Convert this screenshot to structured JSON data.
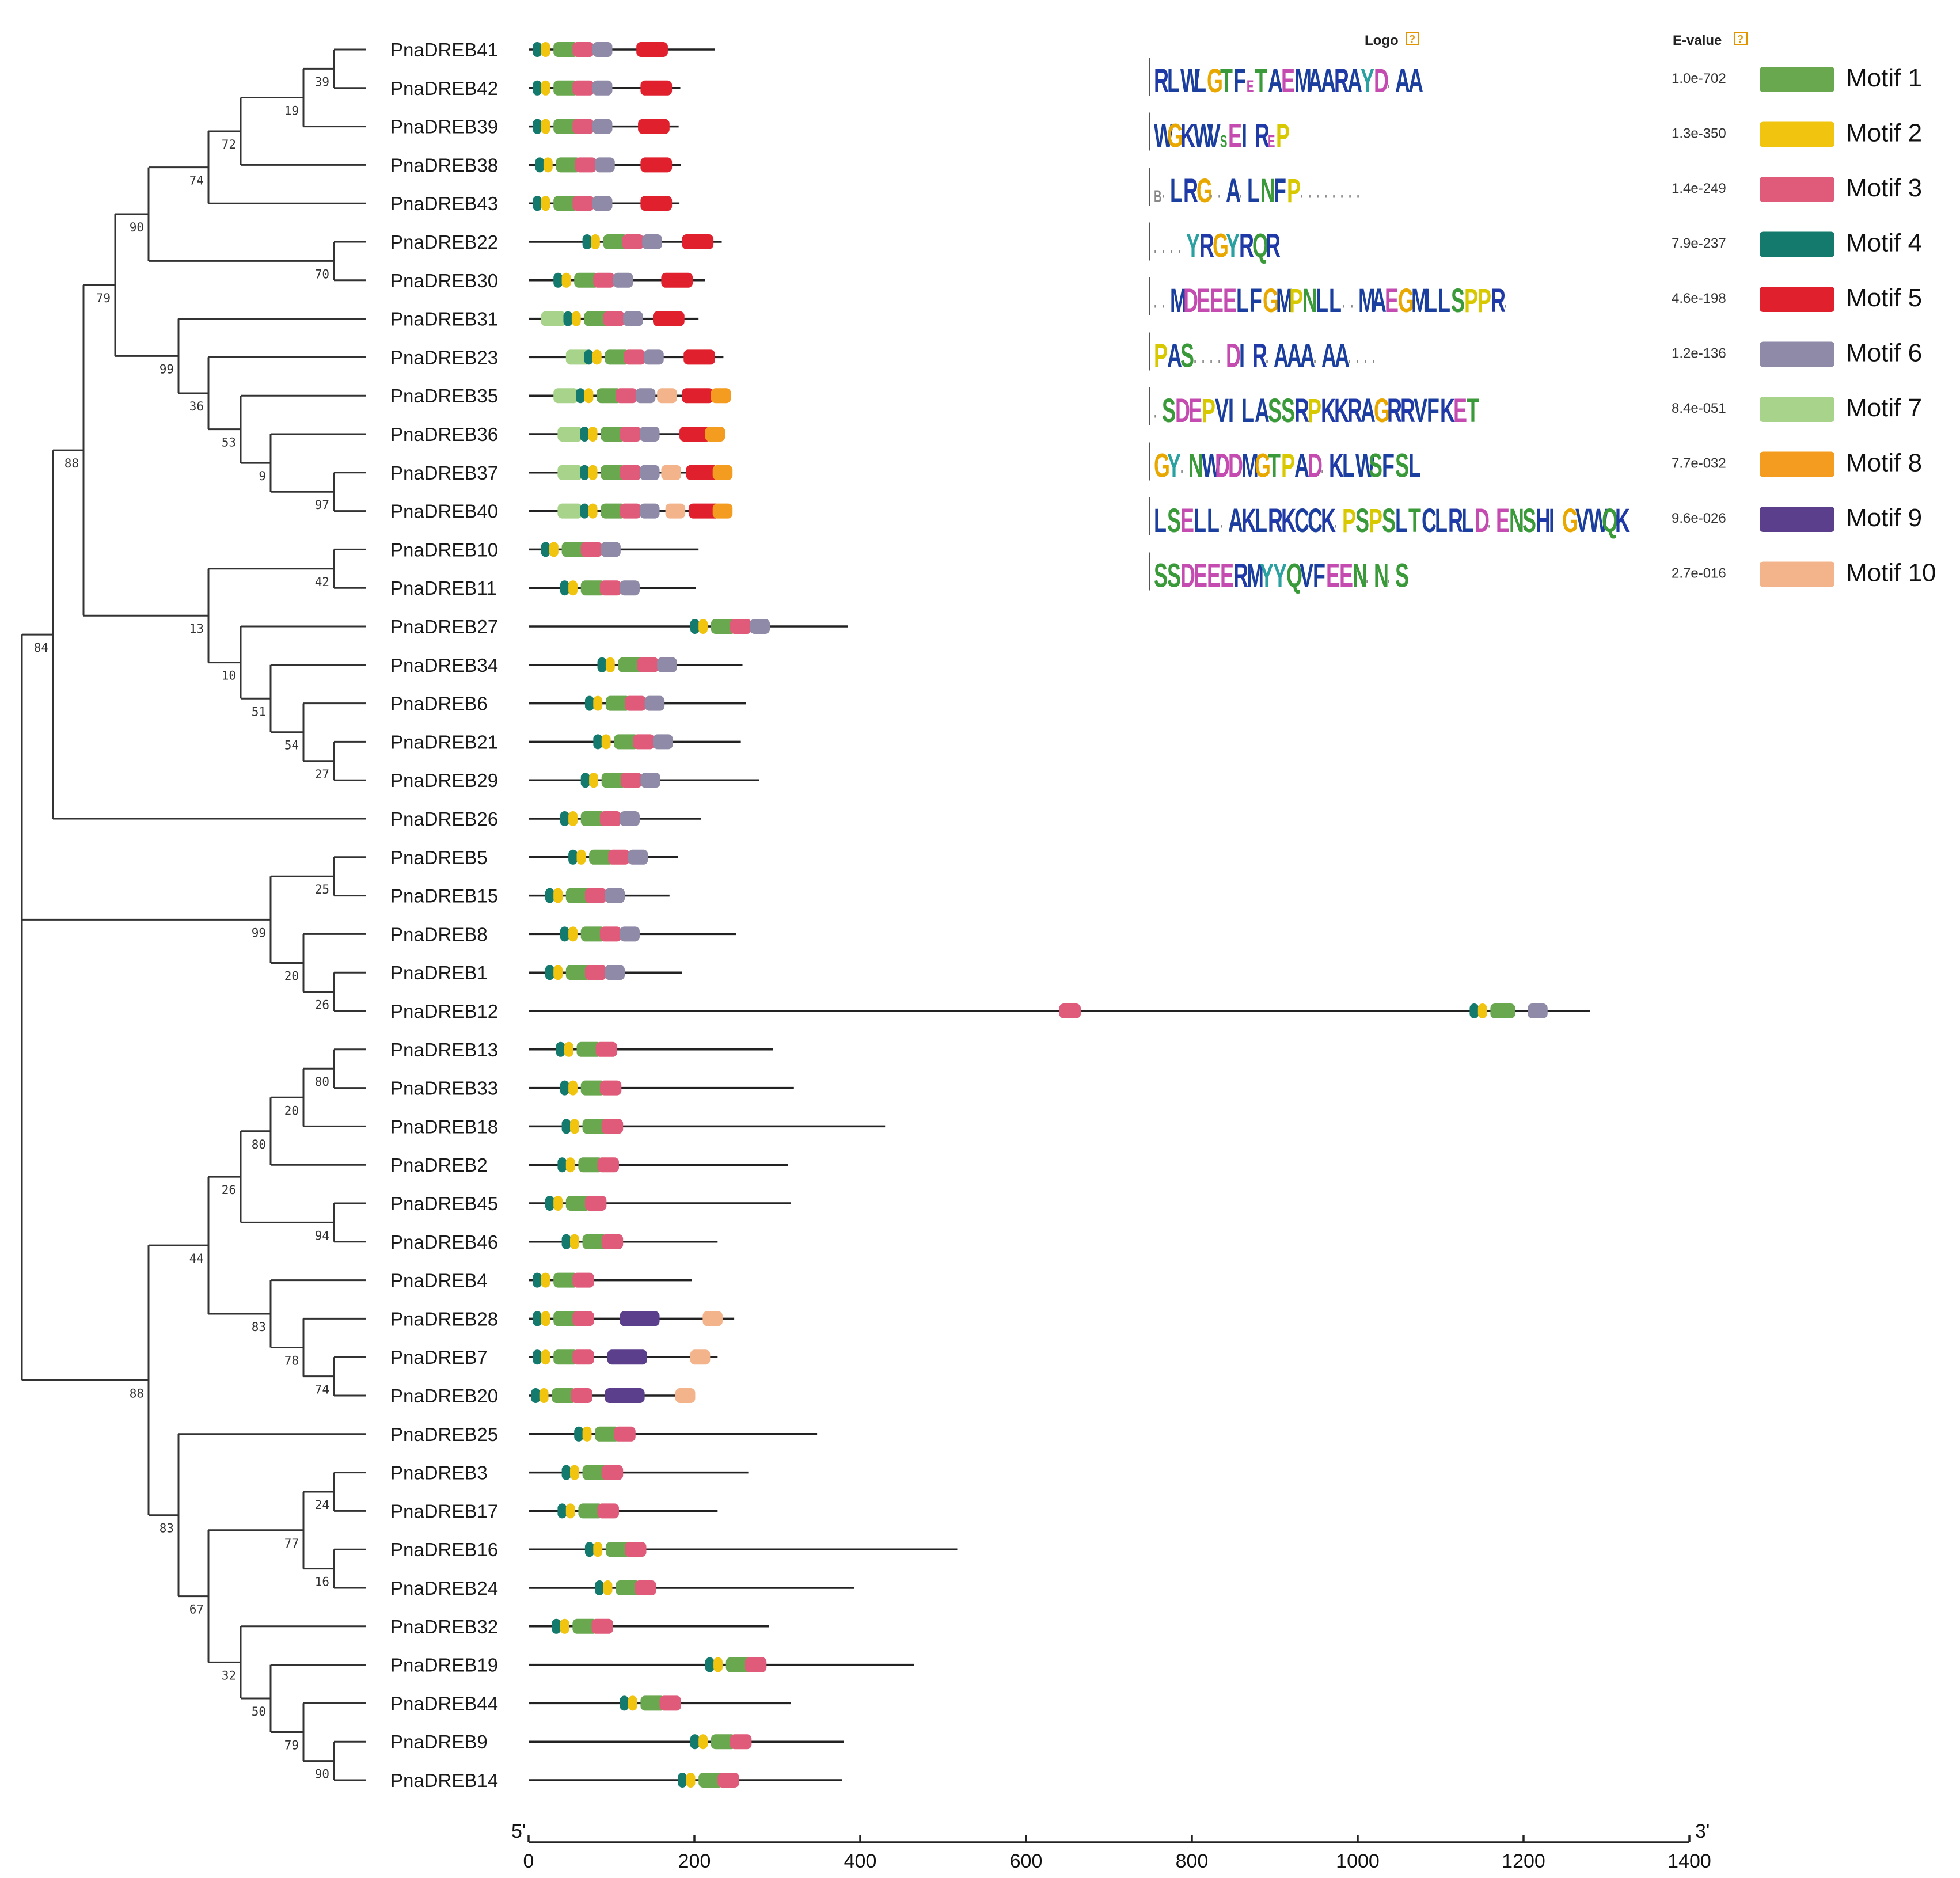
{
  "header": {
    "logo": "Logo",
    "evalue": "E-value"
  },
  "axis": {
    "start_label": "5'",
    "end_label": "3'",
    "ticks": [
      0,
      200,
      400,
      600,
      800,
      1000,
      1200,
      1400
    ],
    "max": 1400
  },
  "colors": {
    "motif1": "#6aa84f",
    "motif2": "#f1c40f",
    "motif3": "#e05a7a",
    "motif4": "#157a6e",
    "motif5": "#e0202c",
    "motif6": "#8e8aa8",
    "motif7": "#a8d38a",
    "motif8": "#f39c1f",
    "motif9": "#5b3f8c",
    "motif10": "#f3b48c"
  },
  "motif_legend": [
    {
      "label": "Motif 1",
      "evalue": "1.0e-702",
      "color_key": "motif1",
      "logo": "RLWLGTFeTAEMAARAYDxAA"
    },
    {
      "label": "Motif 2",
      "evalue": "1.3e-350",
      "color_key": "motif2",
      "logo": "WGKWVsEIReP"
    },
    {
      "label": "Motif 3",
      "evalue": "1.4e-249",
      "color_key": "motif3",
      "logo": "bxLRGxxAxLNFPxxxxxxxx"
    },
    {
      "label": "Motif 4",
      "evalue": "7.9e-237",
      "color_key": "motif4",
      "logo": "xxxxYRGYRQR"
    },
    {
      "label": "Motif 5",
      "evalue": "4.6e-198",
      "color_key": "motif5",
      "logo": "xxMDEEELFGMPNLLxxMAEGMLLSPPRx"
    },
    {
      "label": "Motif 6",
      "evalue": "1.2e-136",
      "color_key": "motif6",
      "logo": "PASxxxxDIRxAAAxAAxxxx"
    },
    {
      "label": "Motif 7",
      "evalue": "8.4e-051",
      "color_key": "motif7",
      "logo": "xSDEPVILASSRPKKRAGRRVFKET"
    },
    {
      "label": "Motif 8",
      "evalue": "7.7e-032",
      "color_key": "motif8",
      "logo": "GYxNWDDMGTPADxKLWSFSL"
    },
    {
      "label": "Motif 9",
      "evalue": "9.6e-026",
      "color_key": "motif9",
      "logo": "LSELLxAKLRKCCKxPSPSLTCLRLDxENSHIGVWQK"
    },
    {
      "label": "Motif 10",
      "evalue": "2.7e-016",
      "color_key": "motif10",
      "logo": "SSDEEERMYYQVFEENxNxS"
    }
  ],
  "genes": [
    {
      "name": "PnaDREB41",
      "length": 225,
      "motifs": [
        [
          4,
          5
        ],
        [
          2,
          15
        ],
        [
          1,
          30
        ],
        [
          3,
          53
        ],
        [
          6,
          77
        ],
        [
          5,
          130
        ]
      ]
    },
    {
      "name": "PnaDREB42",
      "length": 183,
      "motifs": [
        [
          4,
          5
        ],
        [
          2,
          15
        ],
        [
          1,
          30
        ],
        [
          3,
          53
        ],
        [
          6,
          77
        ],
        [
          5,
          135
        ]
      ]
    },
    {
      "name": "PnaDREB39",
      "length": 181,
      "motifs": [
        [
          4,
          5
        ],
        [
          2,
          15
        ],
        [
          1,
          30
        ],
        [
          3,
          53
        ],
        [
          6,
          77
        ],
        [
          5,
          132
        ]
      ]
    },
    {
      "name": "PnaDREB38",
      "length": 184,
      "motifs": [
        [
          4,
          8
        ],
        [
          2,
          18
        ],
        [
          1,
          33
        ],
        [
          3,
          56
        ],
        [
          6,
          80
        ],
        [
          5,
          135
        ]
      ]
    },
    {
      "name": "PnaDREB43",
      "length": 182,
      "motifs": [
        [
          4,
          5
        ],
        [
          2,
          15
        ],
        [
          1,
          30
        ],
        [
          3,
          53
        ],
        [
          6,
          77
        ],
        [
          5,
          135
        ]
      ]
    },
    {
      "name": "PnaDREB22",
      "length": 233,
      "motifs": [
        [
          4,
          65
        ],
        [
          2,
          75
        ],
        [
          1,
          90
        ],
        [
          3,
          113
        ],
        [
          6,
          137
        ],
        [
          5,
          185
        ]
      ]
    },
    {
      "name": "PnaDREB30",
      "length": 213,
      "motifs": [
        [
          4,
          30
        ],
        [
          2,
          40
        ],
        [
          1,
          55
        ],
        [
          3,
          78
        ],
        [
          6,
          102
        ],
        [
          5,
          160
        ]
      ]
    },
    {
      "name": "PnaDREB31",
      "length": 205,
      "motifs": [
        [
          7,
          15
        ],
        [
          4,
          42
        ],
        [
          2,
          52
        ],
        [
          1,
          67
        ],
        [
          3,
          90
        ],
        [
          6,
          114
        ],
        [
          5,
          150
        ]
      ]
    },
    {
      "name": "PnaDREB23",
      "length": 235,
      "motifs": [
        [
          7,
          45
        ],
        [
          4,
          67
        ],
        [
          2,
          77
        ],
        [
          1,
          92
        ],
        [
          3,
          115
        ],
        [
          6,
          139
        ],
        [
          5,
          187
        ]
      ]
    },
    {
      "name": "PnaDREB35",
      "length": 240,
      "motifs": [
        [
          7,
          30
        ],
        [
          4,
          57
        ],
        [
          2,
          67
        ],
        [
          1,
          82
        ],
        [
          3,
          105
        ],
        [
          6,
          129
        ],
        [
          10,
          155
        ],
        [
          5,
          185
        ],
        [
          8,
          220
        ]
      ]
    },
    {
      "name": "PnaDREB36",
      "length": 233,
      "motifs": [
        [
          7,
          35
        ],
        [
          4,
          62
        ],
        [
          2,
          72
        ],
        [
          1,
          87
        ],
        [
          3,
          110
        ],
        [
          6,
          134
        ],
        [
          5,
          182
        ],
        [
          8,
          213
        ]
      ]
    },
    {
      "name": "PnaDREB37",
      "length": 242,
      "motifs": [
        [
          7,
          35
        ],
        [
          4,
          62
        ],
        [
          2,
          72
        ],
        [
          1,
          87
        ],
        [
          3,
          110
        ],
        [
          6,
          134
        ],
        [
          10,
          160
        ],
        [
          5,
          190
        ],
        [
          8,
          222
        ]
      ]
    },
    {
      "name": "PnaDREB40",
      "length": 242,
      "motifs": [
        [
          7,
          35
        ],
        [
          4,
          62
        ],
        [
          2,
          72
        ],
        [
          1,
          87
        ],
        [
          3,
          110
        ],
        [
          6,
          134
        ],
        [
          10,
          165
        ],
        [
          5,
          193
        ],
        [
          8,
          222
        ]
      ]
    },
    {
      "name": "PnaDREB10",
      "length": 205,
      "motifs": [
        [
          4,
          15
        ],
        [
          2,
          25
        ],
        [
          1,
          40
        ],
        [
          3,
          63
        ],
        [
          6,
          87
        ]
      ]
    },
    {
      "name": "PnaDREB11",
      "length": 202,
      "motifs": [
        [
          4,
          38
        ],
        [
          2,
          48
        ],
        [
          1,
          63
        ],
        [
          3,
          86
        ],
        [
          6,
          110
        ]
      ]
    },
    {
      "name": "PnaDREB27",
      "length": 385,
      "motifs": [
        [
          4,
          195
        ],
        [
          2,
          205
        ],
        [
          1,
          220
        ],
        [
          3,
          243
        ],
        [
          6,
          267
        ]
      ]
    },
    {
      "name": "PnaDREB34",
      "length": 258,
      "motifs": [
        [
          4,
          83
        ],
        [
          2,
          93
        ],
        [
          1,
          108
        ],
        [
          3,
          131
        ],
        [
          6,
          155
        ]
      ]
    },
    {
      "name": "PnaDREB6",
      "length": 262,
      "motifs": [
        [
          4,
          68
        ],
        [
          2,
          78
        ],
        [
          1,
          93
        ],
        [
          3,
          116
        ],
        [
          6,
          140
        ]
      ]
    },
    {
      "name": "PnaDREB21",
      "length": 256,
      "motifs": [
        [
          4,
          78
        ],
        [
          2,
          88
        ],
        [
          1,
          103
        ],
        [
          3,
          126
        ],
        [
          6,
          150
        ]
      ]
    },
    {
      "name": "PnaDREB29",
      "length": 278,
      "motifs": [
        [
          4,
          63
        ],
        [
          2,
          73
        ],
        [
          1,
          88
        ],
        [
          3,
          111
        ],
        [
          6,
          135
        ]
      ]
    },
    {
      "name": "PnaDREB26",
      "length": 208,
      "motifs": [
        [
          4,
          38
        ],
        [
          2,
          48
        ],
        [
          1,
          63
        ],
        [
          3,
          86
        ],
        [
          6,
          110
        ]
      ]
    },
    {
      "name": "PnaDREB5",
      "length": 180,
      "motifs": [
        [
          4,
          48
        ],
        [
          2,
          58
        ],
        [
          1,
          73
        ],
        [
          3,
          96
        ],
        [
          6,
          120
        ]
      ]
    },
    {
      "name": "PnaDREB15",
      "length": 170,
      "motifs": [
        [
          4,
          20
        ],
        [
          2,
          30
        ],
        [
          1,
          45
        ],
        [
          3,
          68
        ],
        [
          6,
          92
        ]
      ]
    },
    {
      "name": "PnaDREB8",
      "length": 250,
      "motifs": [
        [
          4,
          38
        ],
        [
          2,
          48
        ],
        [
          1,
          63
        ],
        [
          3,
          86
        ],
        [
          6,
          110
        ]
      ]
    },
    {
      "name": "PnaDREB1",
      "length": 185,
      "motifs": [
        [
          4,
          20
        ],
        [
          2,
          30
        ],
        [
          1,
          45
        ],
        [
          3,
          68
        ],
        [
          6,
          92
        ]
      ]
    },
    {
      "name": "PnaDREB12",
      "length": 1280,
      "motifs": [
        [
          3,
          640
        ],
        [
          4,
          1135
        ],
        [
          2,
          1145
        ],
        [
          1,
          1160
        ],
        [
          6,
          1205
        ]
      ]
    },
    {
      "name": "PnaDREB13",
      "length": 295,
      "motifs": [
        [
          4,
          33
        ],
        [
          2,
          43
        ],
        [
          1,
          58
        ],
        [
          3,
          81
        ]
      ]
    },
    {
      "name": "PnaDREB33",
      "length": 320,
      "motifs": [
        [
          4,
          38
        ],
        [
          2,
          48
        ],
        [
          1,
          63
        ],
        [
          3,
          86
        ]
      ]
    },
    {
      "name": "PnaDREB18",
      "length": 430,
      "motifs": [
        [
          4,
          40
        ],
        [
          2,
          50
        ],
        [
          1,
          65
        ],
        [
          3,
          88
        ]
      ]
    },
    {
      "name": "PnaDREB2",
      "length": 313,
      "motifs": [
        [
          4,
          35
        ],
        [
          2,
          45
        ],
        [
          1,
          60
        ],
        [
          3,
          83
        ]
      ]
    },
    {
      "name": "PnaDREB45",
      "length": 316,
      "motifs": [
        [
          4,
          20
        ],
        [
          2,
          30
        ],
        [
          1,
          45
        ],
        [
          3,
          68
        ]
      ]
    },
    {
      "name": "PnaDREB46",
      "length": 228,
      "motifs": [
        [
          4,
          40
        ],
        [
          2,
          50
        ],
        [
          1,
          65
        ],
        [
          3,
          88
        ]
      ]
    },
    {
      "name": "PnaDREB4",
      "length": 197,
      "motifs": [
        [
          4,
          5
        ],
        [
          2,
          15
        ],
        [
          1,
          30
        ],
        [
          3,
          53
        ]
      ]
    },
    {
      "name": "PnaDREB28",
      "length": 248,
      "motifs": [
        [
          4,
          5
        ],
        [
          2,
          15
        ],
        [
          1,
          30
        ],
        [
          3,
          53
        ],
        [
          9,
          110
        ],
        [
          10,
          210
        ]
      ]
    },
    {
      "name": "PnaDREB7",
      "length": 228,
      "motifs": [
        [
          4,
          5
        ],
        [
          2,
          15
        ],
        [
          1,
          30
        ],
        [
          3,
          53
        ],
        [
          9,
          95
        ],
        [
          10,
          195
        ]
      ]
    },
    {
      "name": "PnaDREB20",
      "length": 195,
      "motifs": [
        [
          4,
          3
        ],
        [
          2,
          13
        ],
        [
          1,
          28
        ],
        [
          3,
          51
        ],
        [
          9,
          92
        ],
        [
          10,
          177
        ]
      ]
    },
    {
      "name": "PnaDREB25",
      "length": 348,
      "motifs": [
        [
          4,
          55
        ],
        [
          2,
          65
        ],
        [
          1,
          80
        ],
        [
          3,
          103
        ]
      ]
    },
    {
      "name": "PnaDREB3",
      "length": 265,
      "motifs": [
        [
          4,
          40
        ],
        [
          2,
          50
        ],
        [
          1,
          65
        ],
        [
          3,
          88
        ]
      ]
    },
    {
      "name": "PnaDREB17",
      "length": 228,
      "motifs": [
        [
          4,
          35
        ],
        [
          2,
          45
        ],
        [
          1,
          60
        ],
        [
          3,
          83
        ]
      ]
    },
    {
      "name": "PnaDREB16",
      "length": 517,
      "motifs": [
        [
          4,
          68
        ],
        [
          2,
          78
        ],
        [
          1,
          93
        ],
        [
          3,
          116
        ]
      ]
    },
    {
      "name": "PnaDREB24",
      "length": 393,
      "motifs": [
        [
          4,
          80
        ],
        [
          2,
          90
        ],
        [
          1,
          105
        ],
        [
          3,
          128
        ]
      ]
    },
    {
      "name": "PnaDREB32",
      "length": 290,
      "motifs": [
        [
          4,
          28
        ],
        [
          2,
          38
        ],
        [
          1,
          53
        ],
        [
          3,
          76
        ]
      ]
    },
    {
      "name": "PnaDREB19",
      "length": 465,
      "motifs": [
        [
          4,
          213
        ],
        [
          2,
          223
        ],
        [
          1,
          238
        ],
        [
          3,
          261
        ]
      ]
    },
    {
      "name": "PnaDREB44",
      "length": 316,
      "motifs": [
        [
          4,
          110
        ],
        [
          2,
          120
        ],
        [
          1,
          135
        ],
        [
          3,
          158
        ]
      ]
    },
    {
      "name": "PnaDREB9",
      "length": 380,
      "motifs": [
        [
          4,
          195
        ],
        [
          2,
          205
        ],
        [
          1,
          220
        ],
        [
          3,
          243
        ]
      ]
    },
    {
      "name": "PnaDREB14",
      "length": 378,
      "motifs": [
        [
          4,
          180
        ],
        [
          2,
          190
        ],
        [
          1,
          205
        ],
        [
          3,
          228
        ]
      ]
    }
  ],
  "bootstrap": [
    "84",
    "88",
    "79",
    "90",
    "74",
    "72",
    "19",
    "39",
    "70",
    "99",
    "36",
    "53",
    "9",
    "97",
    "13",
    "42",
    "10",
    "51",
    "54",
    "27",
    "99",
    "25",
    "20",
    "26",
    "88",
    "44",
    "26",
    "80",
    "20",
    "80",
    "94",
    "83",
    "78",
    "74",
    "83",
    "67",
    "77",
    "24",
    "16",
    "32",
    "50",
    "79",
    "90"
  ]
}
